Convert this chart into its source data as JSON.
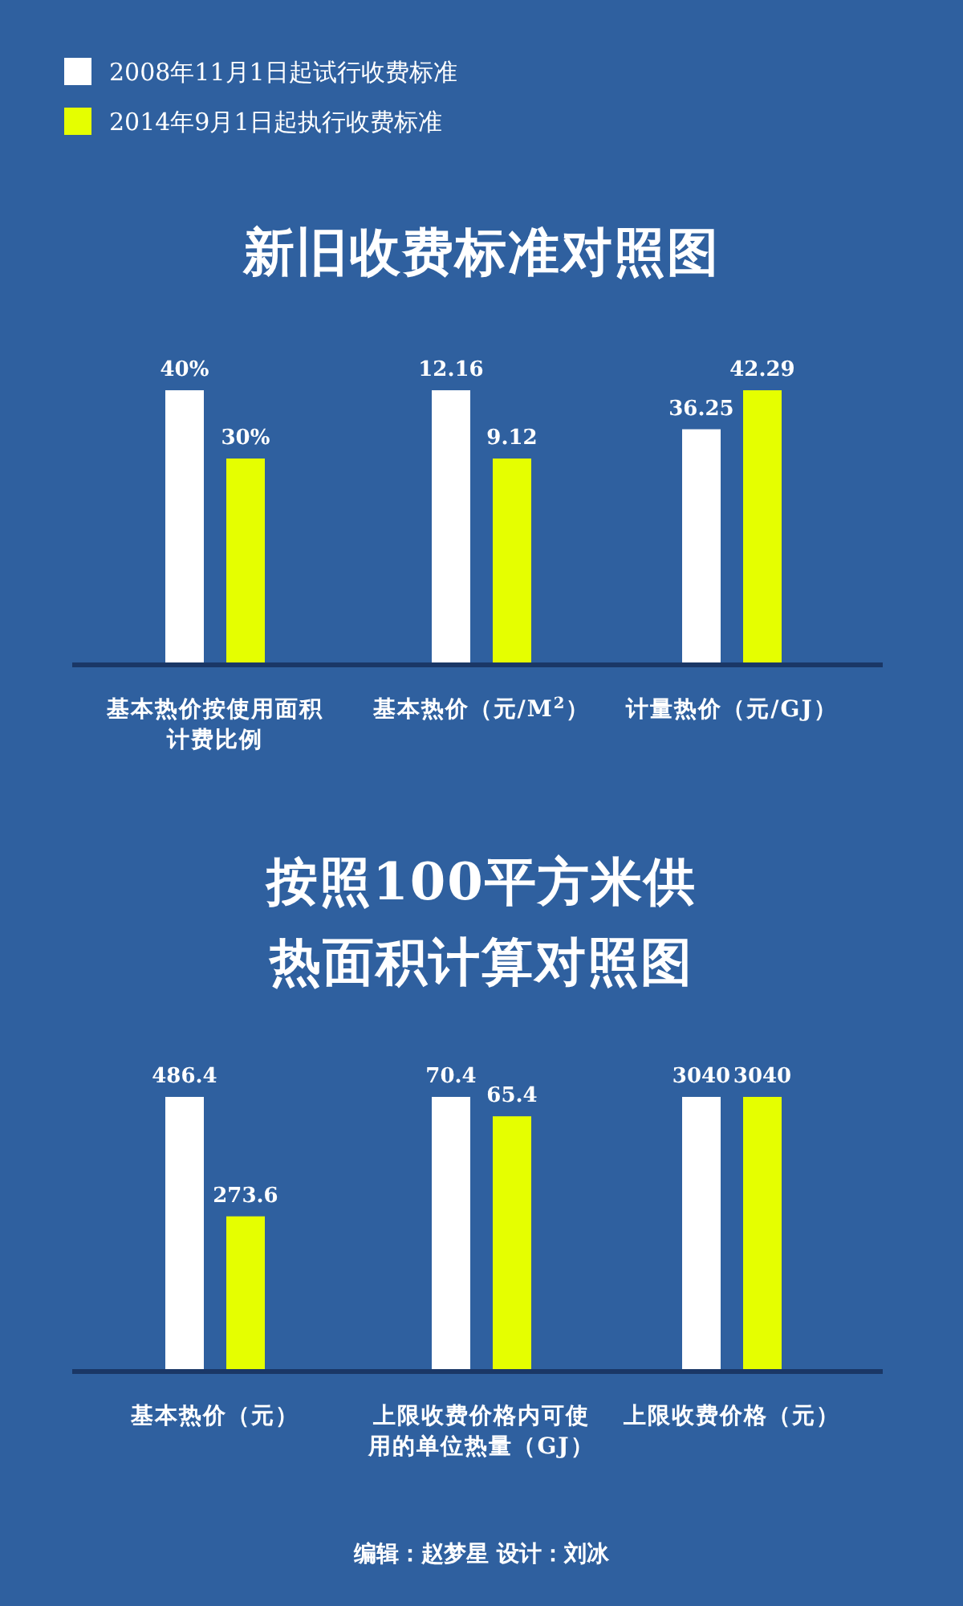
{
  "chart_data": [
    {
      "type": "bar",
      "title": "新旧收费标准对照图",
      "legend": "top",
      "categories": [
        "基本热价按使用面积计费比例"
      ],
      "series": [
        {
          "name": "2008年11月1日起试行收费标准",
          "color": "#ffffff",
          "values": [
            40
          ],
          "value_labels": [
            "40%"
          ]
        },
        {
          "name": "2014年9月1日起执行收费标准",
          "color": "#e5ff00",
          "values": [
            30
          ],
          "value_labels": [
            "30%"
          ]
        }
      ]
    },
    {
      "type": "bar",
      "categories": [
        "基本热价（元/M$^{2}$）"
      ],
      "series": [
        {
          "color": "#ffffff",
          "values": [
            12.16
          ],
          "value_labels": [
            "12.16"
          ]
        },
        {
          "color": "#e5ff00",
          "values": [
            9.12
          ],
          "value_labels": [
            "9.12"
          ]
        }
      ]
    },
    {
      "type": "bar",
      "categories": [
        "计量热价（元/GJ）"
      ],
      "series": [
        {
          "color": "#ffffff",
          "values": [
            36.25
          ],
          "value_labels": [
            "36.25"
          ]
        },
        {
          "color": "#e5ff00",
          "values": [
            42.29
          ],
          "value_labels": [
            "42.29"
          ]
        }
      ]
    },
    {
      "type": "bar",
      "title": "按照100平方米供热面积计算对照图",
      "categories": [
        "基本热价（元）"
      ],
      "series": [
        {
          "color": "#ffffff",
          "values": [
            486.4
          ],
          "value_labels": [
            "486.4"
          ]
        },
        {
          "color": "#e5ff00",
          "values": [
            273.6
          ],
          "value_labels": [
            "273.6"
          ]
        }
      ]
    },
    {
      "type": "bar",
      "categories": [
        "上限收费价格内可使用的单位热量（GJ）"
      ],
      "series": [
        {
          "color": "#ffffff",
          "values": [
            70.4
          ],
          "value_labels": [
            "70.4"
          ]
        },
        {
          "color": "#e5ff00",
          "values": [
            65.4
          ],
          "value_labels": [
            "65.4"
          ]
        }
      ]
    },
    {
      "type": "bar",
      "categories": [
        "上限收费价格（元）"
      ],
      "annotations": [
        "编辑：赵梦星 设计：刘冰"
      ],
      "series": [
        {
          "color": "#ffffff",
          "values": [
            3040
          ],
          "value_labels": [
            "3040"
          ]
        },
        {
          "color": "#e5ff00",
          "values": [
            3040
          ],
          "value_labels": [
            "3040"
          ]
        }
      ]
    }
  ]
}
